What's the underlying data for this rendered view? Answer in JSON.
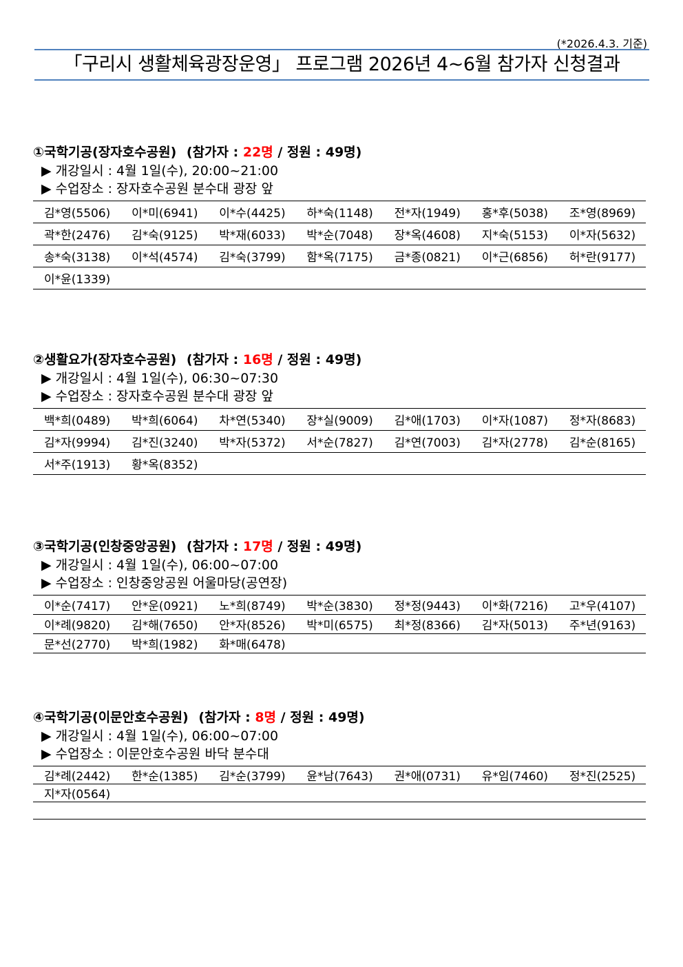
{
  "note": "(*2026.4.3. 기준)",
  "title": "「구리시 생활체육광장운영」 프로그램 2026년 4~6월 참가자 신청결과",
  "colors": {
    "accent": "#4f81bd",
    "count": "#ff0000"
  },
  "sections": [
    {
      "name": "①국학기공(장자호수공원)",
      "count_label": "(참가자 : ",
      "count": "22명",
      "capacity": " / 정원 : 49명)",
      "schedule": "▶ 개강일시 : 4월 1일(수), 20:00~21:00",
      "place": "▶ 수업장소 : 장자호수공원 분수대 광장 앞",
      "rows": [
        [
          "김*영(5506)",
          "이*미(6941)",
          "이*수(4425)",
          "하*숙(1148)",
          "전*자(1949)",
          "홍*후(5038)",
          "조*영(8969)"
        ],
        [
          "곽*한(2476)",
          "김*숙(9125)",
          "박*재(6033)",
          "박*순(7048)",
          "장*옥(4608)",
          "지*숙(5153)",
          "이*자(5632)"
        ],
        [
          "송*숙(3138)",
          "이*석(4574)",
          "김*숙(3799)",
          "함*옥(7175)",
          "금*종(0821)",
          "이*근(6856)",
          "허*란(9177)"
        ],
        [
          "이*윤(1339)",
          "",
          "",
          "",
          "",
          "",
          ""
        ]
      ]
    },
    {
      "name": "②생활요가(장자호수공원)",
      "count_label": "(참가자 : ",
      "count": "16명",
      "capacity": " / 정원 : 49명)",
      "schedule": "▶ 개강일시 : 4월 1일(수), 06:30~07:30",
      "place": "▶ 수업장소 : 장자호수공원 분수대 광장 앞",
      "rows": [
        [
          "백*희(0489)",
          "박*희(6064)",
          "차*연(5340)",
          "장*실(9009)",
          "김*애(1703)",
          "이*자(1087)",
          "정*자(8683)"
        ],
        [
          "김*자(9994)",
          "김*진(3240)",
          "박*자(5372)",
          "서*순(7827)",
          "김*연(7003)",
          "김*자(2778)",
          "김*순(8165)"
        ],
        [
          "서*주(1913)",
          "황*옥(8352)",
          "",
          "",
          "",
          "",
          ""
        ]
      ]
    },
    {
      "name": "③국학기공(인창중앙공원)",
      "count_label": "(참가자 : ",
      "count": "17명",
      "capacity": " / 정원 : 49명)",
      "schedule": "▶ 개강일시 : 4월 1일(수), 06:00~07:00",
      "place": "▶ 수업장소 : 인창중앙공원 어울마당(공연장)",
      "rows": [
        [
          "이*순(7417)",
          "안*운(0921)",
          "노*희(8749)",
          "박*순(3830)",
          "정*정(9443)",
          "이*화(7216)",
          "고*우(4107)"
        ],
        [
          "이*례(9820)",
          "김*해(7650)",
          "안*자(8526)",
          "박*미(6575)",
          "최*정(8366)",
          "김*자(5013)",
          "주*년(9163)"
        ],
        [
          "문*선(2770)",
          "박*희(1982)",
          "화*매(6478)",
          "",
          "",
          "",
          ""
        ]
      ]
    },
    {
      "name": "④국학기공(이문안호수공원)",
      "count_label": "(참가자 : ",
      "count": "8명",
      "capacity": " / 정원 : 49명)",
      "schedule": "▶ 개강일시 : 4월 1일(수), 06:00~07:00",
      "place": "▶ 수업장소 : 이문안호수공원 바닥 분수대",
      "rows": [
        [
          "김*례(2442)",
          "한*순(1385)",
          "김*순(3799)",
          "윤*남(7643)",
          "권*애(0731)",
          "유*임(7460)",
          "정*진(2525)"
        ],
        [
          "지*자(0564)",
          "",
          "",
          "",
          "",
          "",
          ""
        ],
        [
          "",
          "",
          "",
          "",
          "",
          "",
          ""
        ]
      ]
    }
  ]
}
